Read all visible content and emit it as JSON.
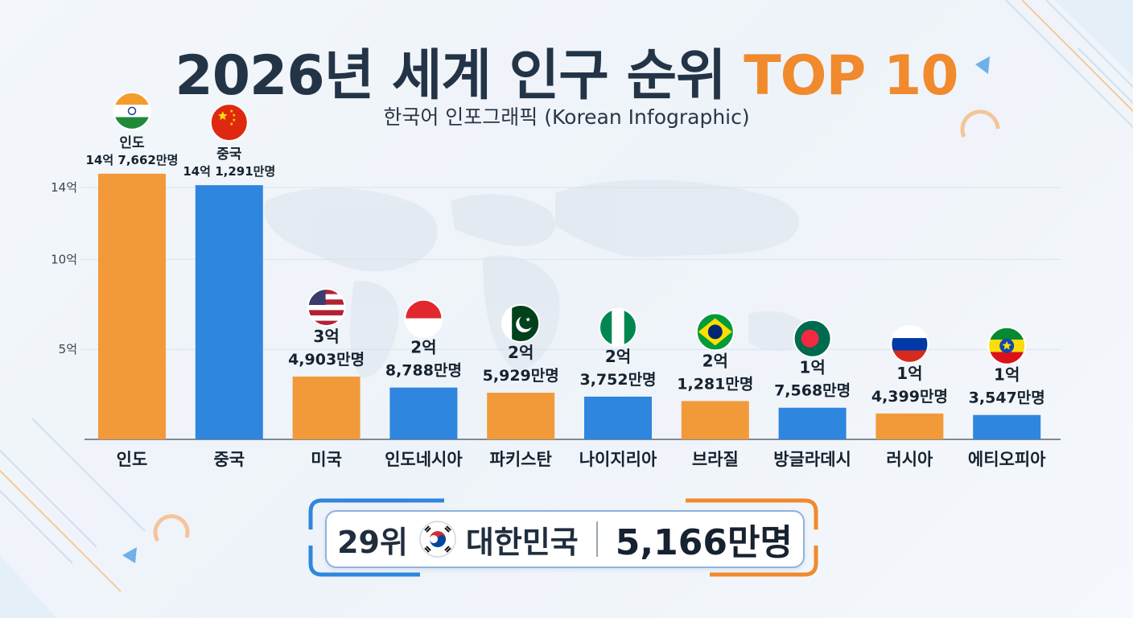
{
  "title_main": "2026년 세계 인구 순위",
  "title_accent": "TOP 10",
  "subtitle": "한국어 인포그래픽 (Korean Infographic)",
  "colors": {
    "orange": "#f29a3a",
    "blue": "#2f86de",
    "accent": "#f08a2c",
    "text": "#1f2d3d"
  },
  "chart_data": {
    "type": "bar",
    "title": "2026년 세계 인구 순위 TOP 10",
    "categories": [
      "인도",
      "중국",
      "미국",
      "인도네시아",
      "파키스탄",
      "나이지리아",
      "브라질",
      "방글라데시",
      "러시아",
      "에티오피아"
    ],
    "values": [
      1476620000,
      1412910000,
      349030000,
      287880000,
      259290000,
      237520000,
      212810000,
      175680000,
      143990000,
      135470000
    ],
    "data_labels": [
      [
        "인도",
        "14억 7,662만명"
      ],
      [
        "중국",
        "14억 1,291만명"
      ],
      [
        "3억",
        "4,903만명"
      ],
      [
        "2억",
        "8,788만명"
      ],
      [
        "2억",
        "5,929만명"
      ],
      [
        "2억",
        "3,752만명"
      ],
      [
        "2억",
        "1,281만명"
      ],
      [
        "1억",
        "7,568만명"
      ],
      [
        "1억",
        "4,399만명"
      ],
      [
        "1억",
        "3,547만명"
      ]
    ],
    "bar_colors": [
      "orange",
      "blue",
      "orange",
      "blue",
      "orange",
      "blue",
      "orange",
      "blue",
      "orange",
      "blue"
    ],
    "flags": [
      "india-flag-icon",
      "china-flag-icon",
      "usa-flag-icon",
      "indonesia-flag-icon",
      "pakistan-flag-icon",
      "nigeria-flag-icon",
      "brazil-flag-icon",
      "bangladesh-flag-icon",
      "russia-flag-icon",
      "ethiopia-flag-icon"
    ],
    "yticks": [
      {
        "value": 500000000,
        "label": "5억"
      },
      {
        "value": 1000000000,
        "label": "10억"
      },
      {
        "value": 1400000000,
        "label": "14억"
      }
    ],
    "grid": true,
    "legend": "none"
  },
  "korea": {
    "rank": "29위",
    "country": "대한민국",
    "population": "5,166만명",
    "value": 51660000,
    "flag": "korea-flag-icon"
  }
}
